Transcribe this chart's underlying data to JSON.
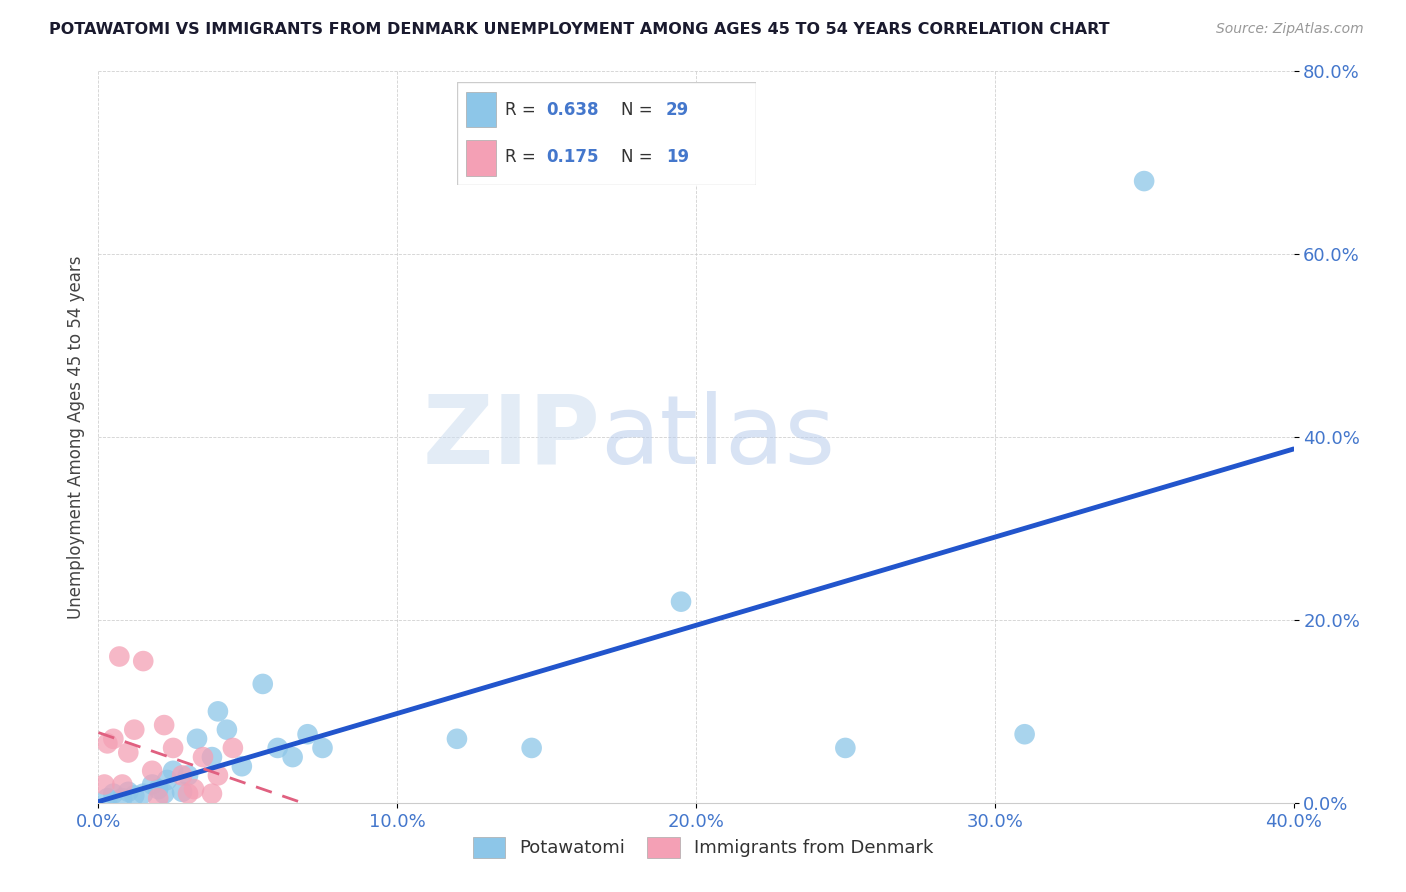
{
  "title": "POTAWATOMI VS IMMIGRANTS FROM DENMARK UNEMPLOYMENT AMONG AGES 45 TO 54 YEARS CORRELATION CHART",
  "source": "Source: ZipAtlas.com",
  "ylabel": "Unemployment Among Ages 45 to 54 years",
  "xlim": [
    0.0,
    0.4
  ],
  "ylim": [
    0.0,
    0.8
  ],
  "legend_label1": "Potawatomi",
  "legend_label2": "Immigrants from Denmark",
  "R1": "0.638",
  "N1": "29",
  "R2": "0.175",
  "N2": "19",
  "color_blue": "#8dc6e8",
  "color_pink": "#f4a0b5",
  "color_blue_line": "#2255cc",
  "color_pink_line": "#e06080",
  "color_tick": "#4477cc",
  "watermark_zip": "#c8ddf0",
  "watermark_atlas": "#b0cce8",
  "blue_x": [
    0.003,
    0.005,
    0.008,
    0.01,
    0.012,
    0.015,
    0.018,
    0.02,
    0.022,
    0.023,
    0.025,
    0.028,
    0.03,
    0.033,
    0.038,
    0.04,
    0.043,
    0.048,
    0.055,
    0.06,
    0.065,
    0.07,
    0.075,
    0.12,
    0.145,
    0.195,
    0.25,
    0.31,
    0.35
  ],
  "blue_y": [
    0.005,
    0.01,
    0.005,
    0.012,
    0.008,
    0.01,
    0.02,
    0.015,
    0.01,
    0.025,
    0.035,
    0.012,
    0.03,
    0.07,
    0.05,
    0.1,
    0.08,
    0.04,
    0.13,
    0.06,
    0.05,
    0.075,
    0.06,
    0.07,
    0.06,
    0.22,
    0.06,
    0.075,
    0.68
  ],
  "pink_x": [
    0.002,
    0.003,
    0.005,
    0.007,
    0.008,
    0.01,
    0.012,
    0.015,
    0.018,
    0.02,
    0.022,
    0.025,
    0.028,
    0.03,
    0.032,
    0.035,
    0.038,
    0.04,
    0.045
  ],
  "pink_y": [
    0.02,
    0.065,
    0.07,
    0.16,
    0.02,
    0.055,
    0.08,
    0.155,
    0.035,
    0.005,
    0.085,
    0.06,
    0.03,
    0.01,
    0.015,
    0.05,
    0.01,
    0.03,
    0.06
  ],
  "xticks": [
    0.0,
    0.1,
    0.2,
    0.3,
    0.4
  ],
  "yticks": [
    0.0,
    0.2,
    0.4,
    0.6,
    0.8
  ]
}
